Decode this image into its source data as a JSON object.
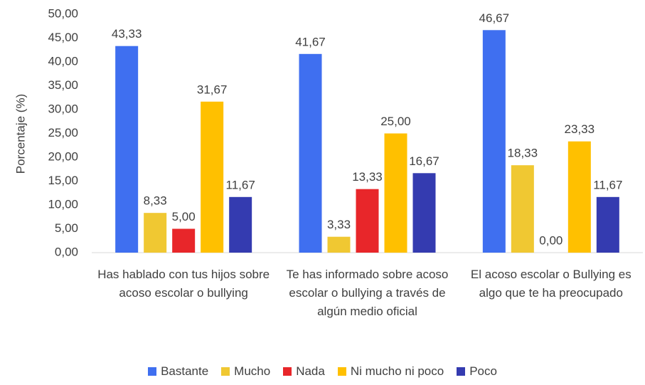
{
  "chart_data": {
    "type": "bar",
    "y_label": "Porcentaje (%)",
    "categories": [
      "Has hablado con tus hijos sobre acoso escolar o bullying",
      "Te has informado sobre acoso escolar o bullying a través de algún medio oficial",
      "El acoso escolar o Bullying es algo que te ha preocupado"
    ],
    "series": [
      {
        "name": "Bastante",
        "color": "#3f6ff0",
        "values": [
          43.33,
          41.67,
          46.67
        ],
        "value_labels": [
          "43,33",
          "41,67",
          "46,67"
        ]
      },
      {
        "name": "Mucho",
        "color": "#f0c832",
        "values": [
          8.33,
          3.33,
          18.33
        ],
        "value_labels": [
          "8,33",
          "3,33",
          "18,33"
        ]
      },
      {
        "name": "Nada",
        "color": "#e8262a",
        "values": [
          5.0,
          13.33,
          0.0
        ],
        "value_labels": [
          "5,00",
          "13,33",
          "0,00"
        ]
      },
      {
        "name": "Ni mucho ni poco",
        "color": "#ffc000",
        "values": [
          31.67,
          25.0,
          23.33
        ],
        "value_labels": [
          "31,67",
          "25,00",
          "23,33"
        ]
      },
      {
        "name": "Poco",
        "color": "#343bb0",
        "values": [
          11.67,
          16.67,
          11.67
        ],
        "value_labels": [
          "11,67",
          "16,67",
          "11,67"
        ]
      }
    ],
    "ylim": [
      0,
      50
    ],
    "yticks": [
      {
        "value": 0,
        "label": "0,00"
      },
      {
        "value": 5,
        "label": "5,00"
      },
      {
        "value": 10,
        "label": "10,00"
      },
      {
        "value": 15,
        "label": "15,00"
      },
      {
        "value": 20,
        "label": "20,00"
      },
      {
        "value": 25,
        "label": "25,00"
      },
      {
        "value": 30,
        "label": "30,00"
      },
      {
        "value": 35,
        "label": "35,00"
      },
      {
        "value": 40,
        "label": "40,00"
      },
      {
        "value": 45,
        "label": "45,00"
      },
      {
        "value": 50,
        "label": "50,00"
      }
    ],
    "grid": false,
    "legend": "bottom"
  }
}
